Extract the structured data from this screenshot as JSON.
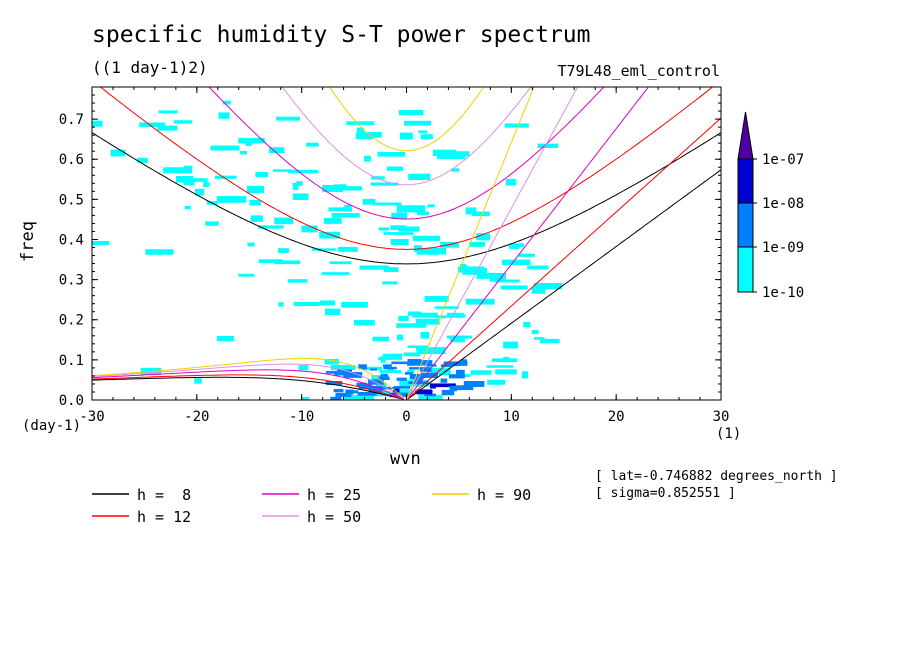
{
  "chart_data": {
    "type": "heatmap",
    "title": "specific humidity S-T power spectrum",
    "subtitle": "((1 day-1)2)",
    "run_name": "T79L48_eml_control",
    "xlabel": "wvn",
    "ylabel": "freq",
    "x_unit": "(1)",
    "y_unit": "(day-1)",
    "xlim": [
      -30,
      30
    ],
    "ylim": [
      0,
      0.78
    ],
    "x_ticks": [
      -30,
      -20,
      -10,
      0,
      10,
      20,
      30
    ],
    "x_tick_labels": [
      "-30",
      "-20",
      "-10",
      "0",
      "10",
      "20",
      "30"
    ],
    "y_ticks": [
      0,
      0.1,
      0.2,
      0.3,
      0.4,
      0.5,
      0.6,
      0.7
    ],
    "y_tick_labels": [
      "0.0",
      "0.1",
      "0.2",
      "0.3",
      "0.4",
      "0.5",
      "0.6",
      "0.7"
    ],
    "colorbar": {
      "labels": [
        "1e-07",
        "1e-08",
        "1e-09",
        "1e-10"
      ],
      "colors": [
        "#00ffff",
        "#0080ff",
        "#0000d0",
        "#5000a0"
      ]
    },
    "dispersion_curves": [
      {
        "name": "h =  8",
        "h": 8,
        "color": "#000000"
      },
      {
        "name": "h = 12",
        "h": 12,
        "color": "#ff0000"
      },
      {
        "name": "h = 25",
        "h": 25,
        "color": "#e000c0"
      },
      {
        "name": "h = 50",
        "h": 50,
        "color": "#e090e0"
      },
      {
        "name": "h = 90",
        "h": 90,
        "color": "#f0d000"
      }
    ],
    "info": [
      "[ lat=-0.746882 degrees_north ]",
      "[ sigma=0.852551 ]"
    ]
  }
}
